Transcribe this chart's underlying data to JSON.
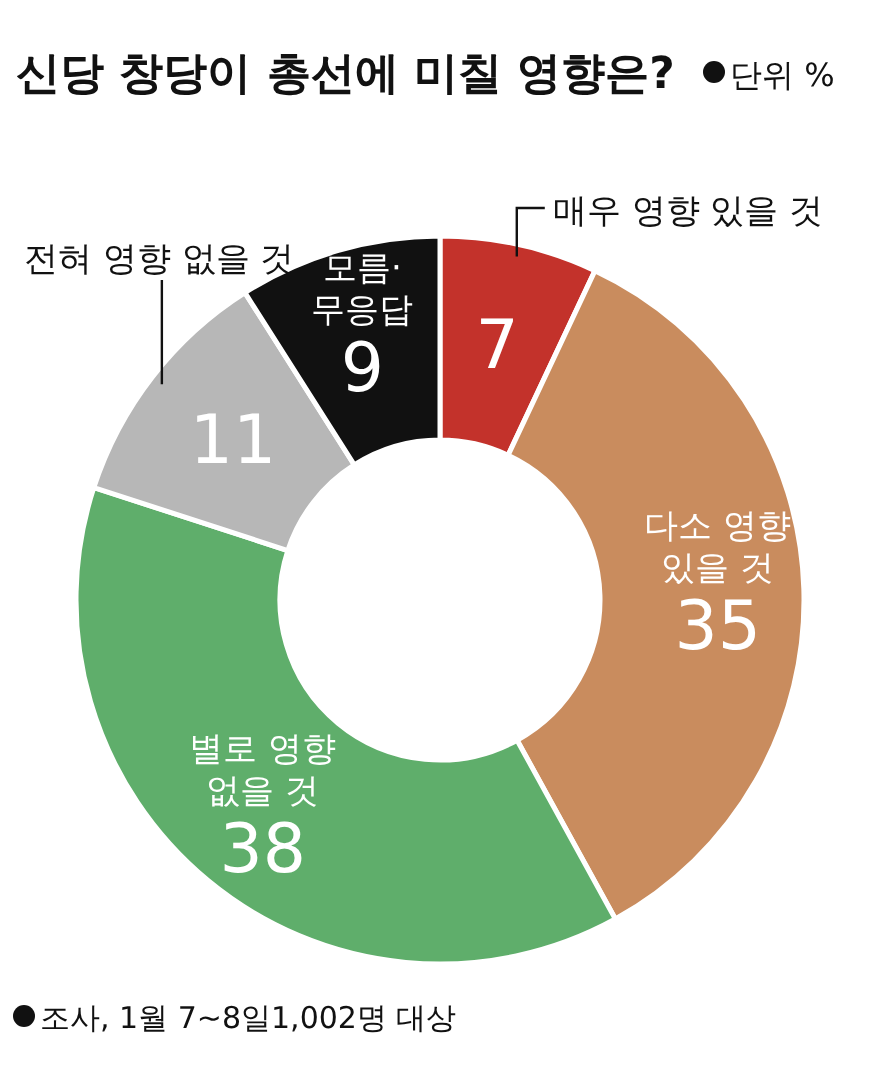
{
  "chart_data": {
    "type": "donut",
    "title": "신당 창당이 총선에 미칠 영향은?",
    "subtitle": "단위 %",
    "categories": [
      "매우 영향 있을 것",
      "다소 영향 있을 것",
      "별로 영향 없을 것",
      "전혀 영향 없을 것",
      "모름·무응답"
    ],
    "values": [
      7,
      35,
      38,
      11,
      9
    ],
    "colors": [
      "#c3322b",
      "#c98c5e",
      "#5fae6b",
      "#b7b7b7",
      "#111111"
    ],
    "data_labels": true,
    "annotations": [
      "조사, 1월 7~8일1,002명 대상"
    ]
  }
}
